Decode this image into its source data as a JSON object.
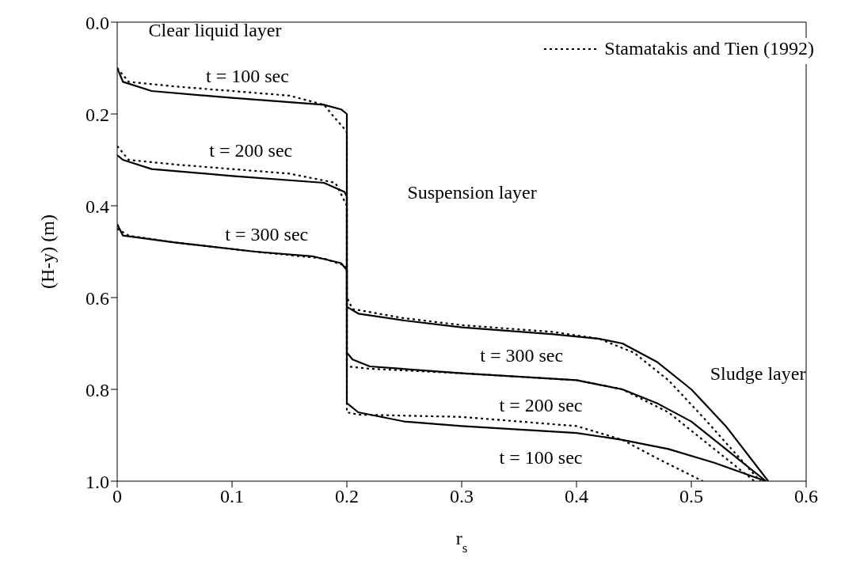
{
  "chart_data": {
    "type": "line",
    "xlabel": "r$_{s}$",
    "ylabel": "(H-y) (m)",
    "xlim": [
      0,
      0.6
    ],
    "xticks": [
      0,
      0.1,
      0.2,
      0.3,
      0.4,
      0.5,
      0.6
    ],
    "ylim": [
      1,
      0
    ],
    "yticks": [
      {
        "value": 0,
        "label": "0.0"
      },
      0.2,
      0.4,
      0.6,
      0.8,
      {
        "value": 1,
        "label": "1.0"
      }
    ],
    "grid": false,
    "legend": "top right",
    "marker": "none",
    "series": [
      {
        "color": "#000000",
        "line_style": "solid",
        "x": [
          0,
          0.005,
          0.03,
          0.1,
          0.18,
          0.195,
          0.2,
          0.2,
          0.21,
          0.25,
          0.3,
          0.4,
          0.44,
          0.48,
          0.52,
          0.565
        ],
        "values": [
          0.1,
          0.13,
          0.15,
          0.165,
          0.18,
          0.19,
          0.2,
          0.83,
          0.85,
          0.87,
          0.88,
          0.895,
          0.91,
          0.93,
          0.96,
          1.0
        ]
      },
      {
        "color": "#000000",
        "line_style": "solid",
        "x": [
          0,
          0.005,
          0.03,
          0.1,
          0.18,
          0.198,
          0.2,
          0.2,
          0.205,
          0.22,
          0.3,
          0.4,
          0.44,
          0.47,
          0.5,
          0.53,
          0.565
        ],
        "values": [
          0.29,
          0.3,
          0.32,
          0.335,
          0.35,
          0.37,
          0.38,
          0.72,
          0.735,
          0.75,
          0.765,
          0.78,
          0.8,
          0.83,
          0.87,
          0.93,
          1.0
        ]
      },
      {
        "color": "#000000",
        "line_style": "solid",
        "x": [
          0,
          0.005,
          0.05,
          0.12,
          0.17,
          0.195,
          0.2,
          0.2,
          0.21,
          0.25,
          0.3,
          0.38,
          0.42,
          0.44,
          0.47,
          0.5,
          0.53,
          0.567
        ],
        "values": [
          0.44,
          0.465,
          0.48,
          0.5,
          0.51,
          0.525,
          0.54,
          0.62,
          0.635,
          0.65,
          0.665,
          0.68,
          0.69,
          0.7,
          0.74,
          0.8,
          0.88,
          1.0
        ]
      },
      {
        "name": "Stamatakis and Tien (1992)",
        "color": "#000000",
        "line_style": "dotted",
        "x": [
          0,
          0.01,
          0.05,
          0.1,
          0.15,
          0.18,
          0.19,
          0.197,
          0.2,
          0.2,
          0.21,
          0.3,
          0.35,
          0.4,
          0.44,
          0.47,
          0.51
        ],
        "values": [
          0.1,
          0.13,
          0.14,
          0.15,
          0.16,
          0.18,
          0.21,
          0.23,
          0.24,
          0.85,
          0.855,
          0.86,
          0.87,
          0.88,
          0.91,
          0.95,
          1.0
        ]
      },
      {
        "color": "#000000",
        "line_style": "dotted",
        "x": [
          0,
          0.01,
          0.05,
          0.15,
          0.19,
          0.198,
          0.2,
          0.2,
          0.22,
          0.3,
          0.4,
          0.44,
          0.48,
          0.52,
          0.555
        ],
        "values": [
          0.27,
          0.3,
          0.31,
          0.33,
          0.35,
          0.39,
          0.4,
          0.75,
          0.755,
          0.765,
          0.78,
          0.8,
          0.85,
          0.93,
          1.0
        ]
      },
      {
        "color": "#000000",
        "line_style": "dotted",
        "x": [
          0,
          0.01,
          0.05,
          0.12,
          0.18,
          0.198,
          0.2,
          0.2,
          0.205,
          0.25,
          0.3,
          0.38,
          0.42,
          0.45,
          0.48,
          0.51,
          0.535,
          0.56
        ],
        "values": [
          0.45,
          0.465,
          0.48,
          0.5,
          0.515,
          0.53,
          0.54,
          0.6,
          0.625,
          0.645,
          0.66,
          0.675,
          0.69,
          0.72,
          0.78,
          0.86,
          0.93,
          1.0
        ]
      }
    ],
    "annotations": [
      "Clear liquid layer",
      "t = 100 sec",
      "t = 200 sec",
      "t = 300 sec",
      "Suspension layer",
      "t = 300 sec",
      "Sludge layer",
      "t = 200 sec",
      "t = 100 sec"
    ]
  }
}
